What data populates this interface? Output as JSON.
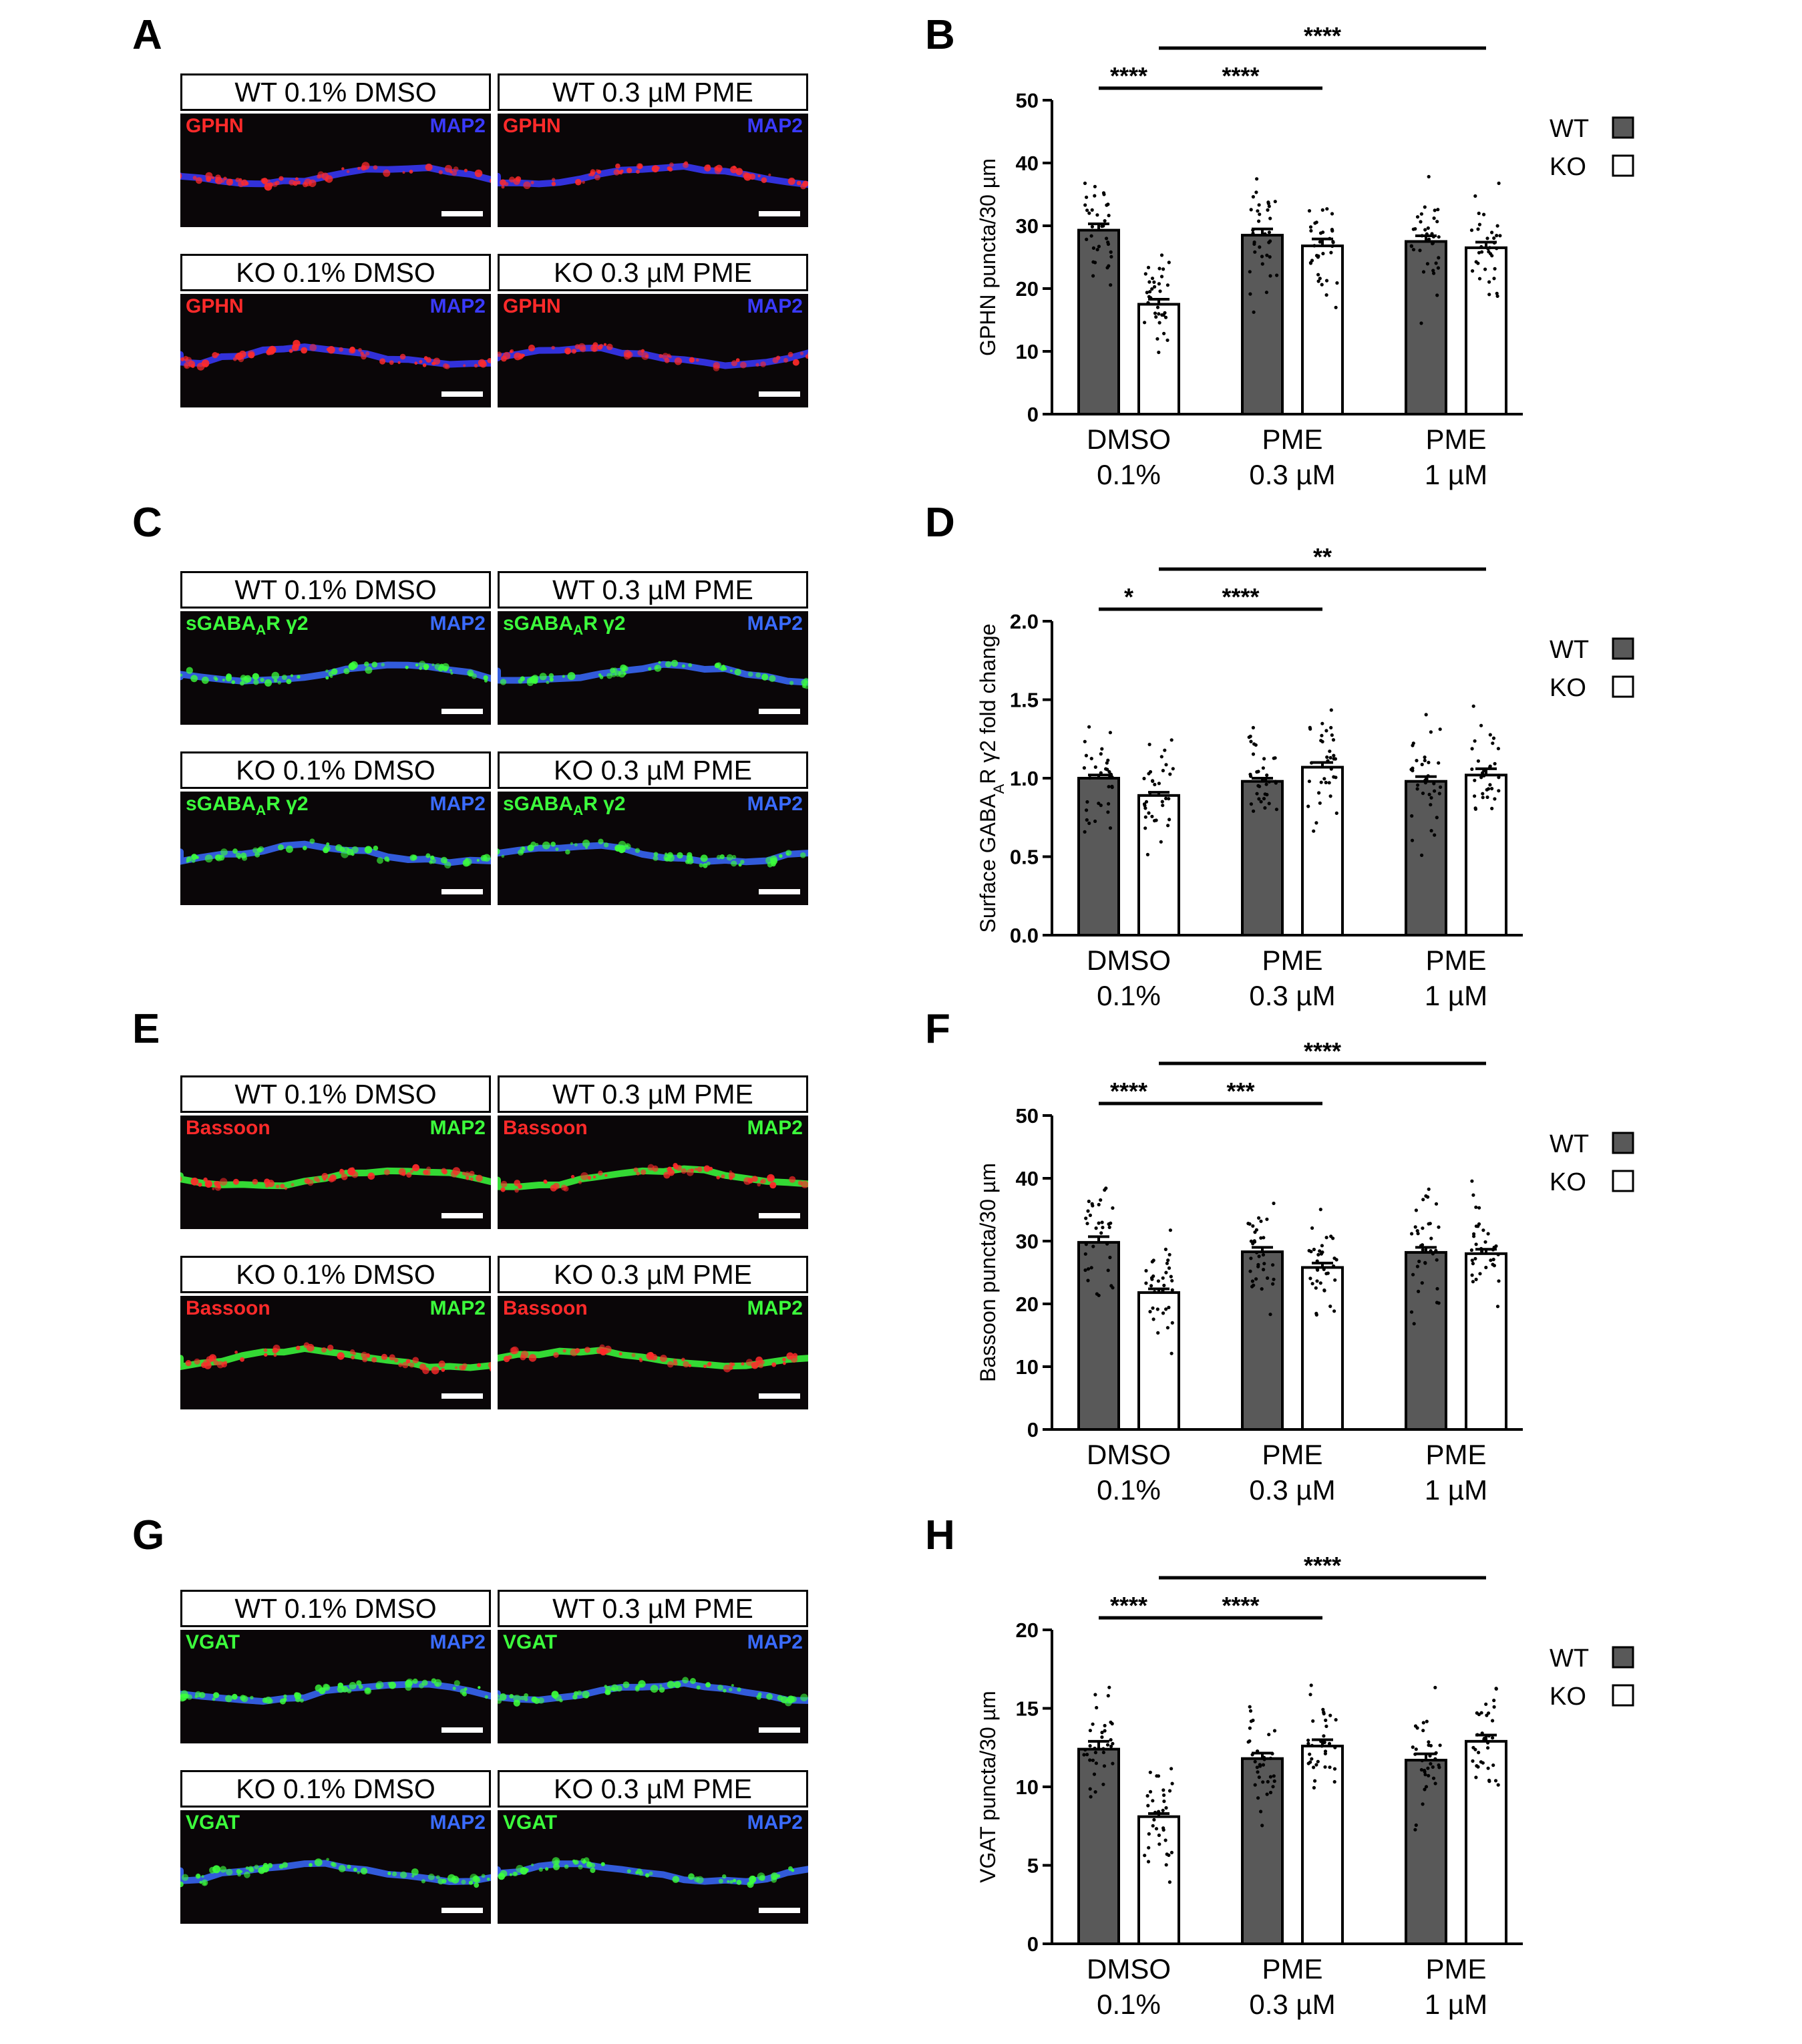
{
  "panels": {
    "A": "A",
    "B": "B",
    "C": "C",
    "D": "D",
    "E": "E",
    "F": "F",
    "G": "G",
    "H": "H"
  },
  "image_rows": [
    {
      "id": "A",
      "marker": "GPHN",
      "marker_color": "#ff2a2a",
      "map_label": "MAP2",
      "map_color": "#3a3aff",
      "cells": [
        {
          "label": "WT 0.1% DMSO"
        },
        {
          "label": "WT 0.3 µM PME"
        },
        {
          "label": "KO 0.1% DMSO"
        },
        {
          "label": "KO 0.3 µM PME"
        }
      ]
    },
    {
      "id": "C",
      "marker": "sGABA",
      "marker_sub": "A",
      "marker_tail": "R γ2",
      "marker_color": "#3cff3c",
      "map_label": "MAP2",
      "map_color": "#3a6bff",
      "cells": [
        {
          "label": "WT 0.1% DMSO"
        },
        {
          "label": "WT 0.3 µM PME"
        },
        {
          "label": "KO 0.1% DMSO"
        },
        {
          "label": "KO 0.3 µM PME"
        }
      ]
    },
    {
      "id": "E",
      "marker": "Bassoon",
      "marker_color": "#ff2a2a",
      "map_label": "MAP2",
      "map_color": "#3cff3c",
      "cells": [
        {
          "label": "WT 0.1% DMSO"
        },
        {
          "label": "WT 0.3 µM PME"
        },
        {
          "label": "KO 0.1% DMSO"
        },
        {
          "label": "KO 0.3 µM PME"
        }
      ]
    },
    {
      "id": "G",
      "marker": "VGAT",
      "marker_color": "#3cff3c",
      "map_label": "MAP2",
      "map_color": "#3a6bff",
      "cells": [
        {
          "label": "WT 0.1% DMSO"
        },
        {
          "label": "WT 0.3 µM PME"
        },
        {
          "label": "KO 0.1% DMSO"
        },
        {
          "label": "KO 0.3 µM PME"
        }
      ]
    }
  ],
  "legend": {
    "wt": "WT",
    "ko": "KO",
    "wt_color": "#595959",
    "ko_color": "#ffffff"
  },
  "chart_data": [
    {
      "id": "B",
      "type": "bar",
      "ylabel": "GPHN puncta/30 µm",
      "ylim": [
        0,
        50
      ],
      "yticks": [
        0,
        10,
        20,
        30,
        40,
        50
      ],
      "categories": [
        [
          "DMSO",
          "0.1%"
        ],
        [
          "PME",
          "0.3 µM"
        ],
        [
          "PME",
          "1 µM"
        ]
      ],
      "series": [
        {
          "name": "WT",
          "values": [
            29.3,
            28.5,
            27.5
          ]
        },
        {
          "name": "KO",
          "values": [
            17.5,
            26.8,
            26.5
          ]
        }
      ],
      "errors": [
        [
          1.0,
          1.0,
          0.9
        ],
        [
          0.8,
          1.1,
          0.9
        ]
      ],
      "significance": [
        {
          "label": "****",
          "from": "DMSO-WT",
          "to": "DMSO-KO"
        },
        {
          "label": "****",
          "from": "DMSO-KO",
          "to": "PME0.3-KO"
        },
        {
          "label": "****",
          "from": "DMSO-KO",
          "to": "PME1-KO"
        }
      ]
    },
    {
      "id": "D",
      "type": "bar",
      "ylabel": "Surface GABA",
      "ylabel_sub": "A",
      "ylabel_tail": "R γ2 fold change",
      "ylim": [
        0,
        2.0
      ],
      "yticks": [
        0.0,
        0.5,
        1.0,
        1.5,
        2.0
      ],
      "categories": [
        [
          "DMSO",
          "0.1%"
        ],
        [
          "PME",
          "0.3 µM"
        ],
        [
          "PME",
          "1 µM"
        ]
      ],
      "series": [
        {
          "name": "WT",
          "values": [
            1.0,
            0.98,
            0.98
          ]
        },
        {
          "name": "KO",
          "values": [
            0.89,
            1.07,
            1.02
          ]
        }
      ],
      "errors": [
        [
          0.02,
          0.02,
          0.03
        ],
        [
          0.02,
          0.03,
          0.04
        ]
      ],
      "significance": [
        {
          "label": "*",
          "from": "DMSO-WT",
          "to": "DMSO-KO"
        },
        {
          "label": "****",
          "from": "DMSO-KO",
          "to": "PME0.3-KO"
        },
        {
          "label": "**",
          "from": "DMSO-KO",
          "to": "PME1-KO"
        }
      ]
    },
    {
      "id": "F",
      "type": "bar",
      "ylabel": "Bassoon puncta/30 µm",
      "ylim": [
        0,
        50
      ],
      "yticks": [
        0,
        10,
        20,
        30,
        40,
        50
      ],
      "categories": [
        [
          "DMSO",
          "0.1%"
        ],
        [
          "PME",
          "0.3 µM"
        ],
        [
          "PME",
          "1 µM"
        ]
      ],
      "series": [
        {
          "name": "WT",
          "values": [
            29.8,
            28.3,
            28.2
          ]
        },
        {
          "name": "KO",
          "values": [
            21.8,
            25.8,
            28.0
          ]
        }
      ],
      "errors": [
        [
          0.9,
          0.7,
          0.8
        ],
        [
          0.6,
          0.7,
          0.7
        ]
      ],
      "significance": [
        {
          "label": "****",
          "from": "DMSO-WT",
          "to": "DMSO-KO"
        },
        {
          "label": "***",
          "from": "DMSO-KO",
          "to": "PME0.3-KO"
        },
        {
          "label": "****",
          "from": "DMSO-KO",
          "to": "PME1-KO"
        }
      ]
    },
    {
      "id": "H",
      "type": "bar",
      "ylabel": "VGAT puncta/30 µm",
      "ylim": [
        0,
        20
      ],
      "yticks": [
        0,
        5,
        10,
        15,
        20
      ],
      "categories": [
        [
          "DMSO",
          "0.1%"
        ],
        [
          "PME",
          "0.3 µM"
        ],
        [
          "PME",
          "1 µM"
        ]
      ],
      "series": [
        {
          "name": "WT",
          "values": [
            12.4,
            11.8,
            11.7
          ]
        },
        {
          "name": "KO",
          "values": [
            8.1,
            12.6,
            12.9
          ]
        }
      ],
      "errors": [
        [
          0.5,
          0.35,
          0.4
        ],
        [
          0.2,
          0.4,
          0.4
        ]
      ],
      "significance": [
        {
          "label": "****",
          "from": "DMSO-WT",
          "to": "DMSO-KO"
        },
        {
          "label": "****",
          "from": "DMSO-KO",
          "to": "PME0.3-KO"
        },
        {
          "label": "****",
          "from": "DMSO-KO",
          "to": "PME1-KO"
        }
      ]
    }
  ]
}
